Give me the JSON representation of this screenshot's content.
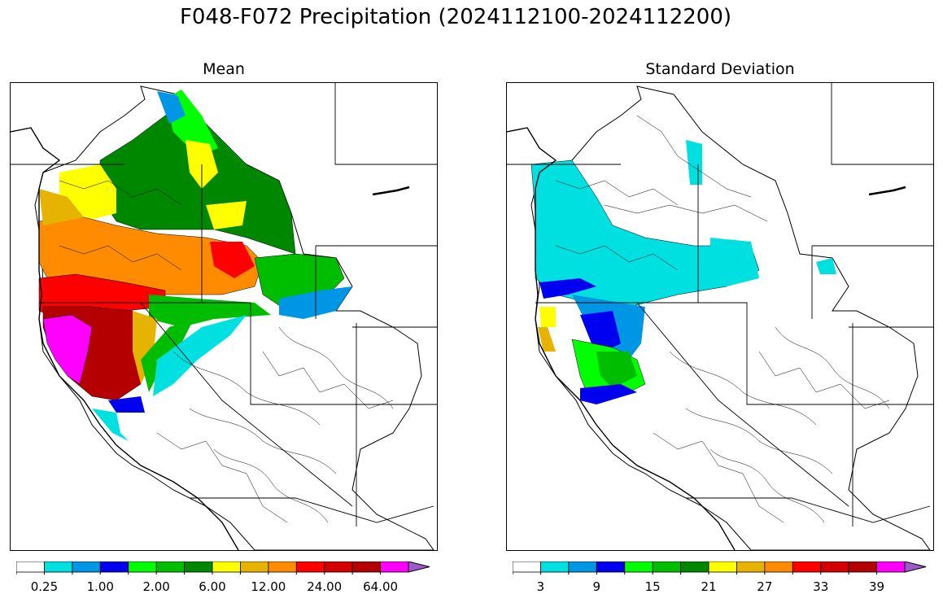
{
  "title": "F048-F072 Precipitation (2024112100-2024112200)",
  "panels": {
    "mean": {
      "title": "Mean",
      "colorbar": {
        "colors": [
          "#ffffff",
          "#00e0e0",
          "#0096e6",
          "#0000f0",
          "#00ff00",
          "#00bd00",
          "#008700",
          "#ffff00",
          "#e6b400",
          "#ff8c00",
          "#ff0000",
          "#d40000",
          "#b40000",
          "#ff00ff",
          "#9c5acd"
        ],
        "tick_labels": [
          "0.25",
          "1.00",
          "2.00",
          "6.00",
          "12.00",
          "24.00",
          "64.00"
        ],
        "extend": "max"
      }
    },
    "stddev": {
      "title": "Standard Deviation",
      "colorbar": {
        "colors": [
          "#ffffff",
          "#00e0e0",
          "#0096e6",
          "#0000f0",
          "#00ff00",
          "#00bd00",
          "#008700",
          "#ffff00",
          "#e6b400",
          "#ff8c00",
          "#ff0000",
          "#d40000",
          "#b40000",
          "#ff00ff",
          "#9c5acd"
        ],
        "tick_labels": [
          "3",
          "9",
          "15",
          "21",
          "27",
          "33",
          "39"
        ],
        "extend": "max"
      }
    }
  }
}
